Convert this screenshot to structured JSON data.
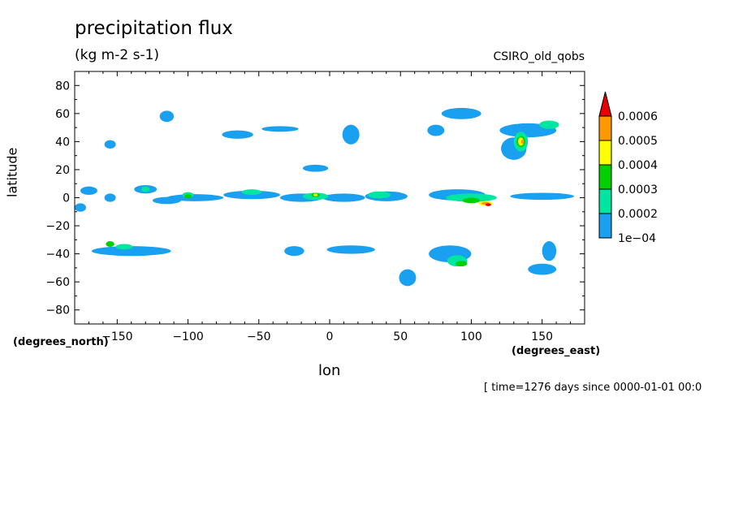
{
  "header": {
    "title": "precipitation flux",
    "units": "(kg m-2 s-1)",
    "source": "CSIRO_old_qobs"
  },
  "footer": {
    "time": "[ time=1276 days since 0000-01-01 00:0"
  },
  "chart_data": {
    "type": "heatmap",
    "title": "precipitation flux",
    "subtitle": "(kg m-2 s-1)",
    "xlabel": "lon",
    "ylabel": "latitude",
    "x_units": "(degrees_east)",
    "y_units": "(degrees_north)",
    "xlim": [
      -180,
      180
    ],
    "ylim": [
      -90,
      90
    ],
    "x_ticks": [
      -150,
      -100,
      -50,
      0,
      50,
      100,
      150
    ],
    "y_ticks": [
      80,
      60,
      40,
      20,
      0,
      -20,
      -40,
      -60,
      -80
    ],
    "colorbar": {
      "levels": [
        "1e-04",
        "0.0002",
        "0.0003",
        "0.0004",
        "0.0005",
        "0.0006"
      ],
      "colors": [
        "#1aa0f0",
        "#00e6a0",
        "#00d000",
        "#ffff00",
        "#ff9900",
        "#e60000"
      ]
    },
    "features": [
      {
        "lon": -170,
        "lat": 5,
        "w": 12,
        "h": 6,
        "level": 0
      },
      {
        "lon": -176,
        "lat": -7,
        "w": 8,
        "h": 6,
        "level": 0
      },
      {
        "lon": -155,
        "lat": 38,
        "w": 8,
        "h": 6,
        "level": 0
      },
      {
        "lon": -130,
        "lat": 6,
        "w": 16,
        "h": 6,
        "level": 0
      },
      {
        "lon": -155,
        "lat": 0,
        "w": 8,
        "h": 6,
        "level": 0
      },
      {
        "lon": -115,
        "lat": -2,
        "w": 20,
        "h": 5,
        "level": 0
      },
      {
        "lon": -95,
        "lat": 0,
        "w": 40,
        "h": 5,
        "level": 0
      },
      {
        "lon": -55,
        "lat": 2,
        "w": 40,
        "h": 6,
        "level": 0
      },
      {
        "lon": -20,
        "lat": 0,
        "w": 30,
        "h": 6,
        "level": 0
      },
      {
        "lon": 10,
        "lat": 0,
        "w": 30,
        "h": 6,
        "level": 0
      },
      {
        "lon": 40,
        "lat": 1,
        "w": 30,
        "h": 7,
        "level": 0
      },
      {
        "lon": 90,
        "lat": 2,
        "w": 40,
        "h": 8,
        "level": 0
      },
      {
        "lon": 150,
        "lat": 1,
        "w": 45,
        "h": 5,
        "level": 0
      },
      {
        "lon": -115,
        "lat": 58,
        "w": 10,
        "h": 8,
        "level": 0
      },
      {
        "lon": -65,
        "lat": 45,
        "w": 22,
        "h": 6,
        "level": 0
      },
      {
        "lon": -35,
        "lat": 49,
        "w": 26,
        "h": 4,
        "level": 0
      },
      {
        "lon": 15,
        "lat": 45,
        "w": 12,
        "h": 14,
        "level": 0
      },
      {
        "lon": 75,
        "lat": 48,
        "w": 12,
        "h": 8,
        "level": 0
      },
      {
        "lon": 93,
        "lat": 60,
        "w": 28,
        "h": 8,
        "level": 0
      },
      {
        "lon": 140,
        "lat": 48,
        "w": 40,
        "h": 10,
        "level": 0
      },
      {
        "lon": 130,
        "lat": 35,
        "w": 18,
        "h": 16,
        "level": 0
      },
      {
        "lon": -10,
        "lat": 21,
        "w": 18,
        "h": 5,
        "level": 0
      },
      {
        "lon": -140,
        "lat": -38,
        "w": 56,
        "h": 7,
        "level": 0
      },
      {
        "lon": -25,
        "lat": -38,
        "w": 14,
        "h": 7,
        "level": 0
      },
      {
        "lon": 15,
        "lat": -37,
        "w": 34,
        "h": 6,
        "level": 0
      },
      {
        "lon": 85,
        "lat": -40,
        "w": 30,
        "h": 12,
        "level": 0
      },
      {
        "lon": 55,
        "lat": -57,
        "w": 12,
        "h": 12,
        "level": 0
      },
      {
        "lon": 150,
        "lat": -51,
        "w": 20,
        "h": 8,
        "level": 0
      },
      {
        "lon": 155,
        "lat": -38,
        "w": 10,
        "h": 14,
        "level": 0
      },
      {
        "lon": -130,
        "lat": 6,
        "w": 6,
        "h": 4,
        "level": 1
      },
      {
        "lon": -100,
        "lat": 2,
        "w": 8,
        "h": 4,
        "level": 1
      },
      {
        "lon": -55,
        "lat": 4,
        "w": 14,
        "h": 4,
        "level": 1
      },
      {
        "lon": -10,
        "lat": 1,
        "w": 18,
        "h": 5,
        "level": 1
      },
      {
        "lon": 35,
        "lat": 2,
        "w": 16,
        "h": 5,
        "level": 1
      },
      {
        "lon": 100,
        "lat": 0,
        "w": 36,
        "h": 6,
        "level": 1
      },
      {
        "lon": 135,
        "lat": 40,
        "w": 10,
        "h": 14,
        "level": 1
      },
      {
        "lon": 155,
        "lat": 52,
        "w": 14,
        "h": 6,
        "level": 1
      },
      {
        "lon": -145,
        "lat": -35,
        "w": 12,
        "h": 4,
        "level": 1
      },
      {
        "lon": 90,
        "lat": -45,
        "w": 14,
        "h": 8,
        "level": 1
      },
      {
        "lon": -155,
        "lat": -33,
        "w": 6,
        "h": 4,
        "level": 2
      },
      {
        "lon": -100,
        "lat": 1,
        "w": 5,
        "h": 3,
        "level": 2
      },
      {
        "lon": -10,
        "lat": 2,
        "w": 6,
        "h": 3,
        "level": 2
      },
      {
        "lon": 100,
        "lat": -2,
        "w": 12,
        "h": 4,
        "level": 2
      },
      {
        "lon": 135,
        "lat": 40,
        "w": 6,
        "h": 8,
        "level": 2
      },
      {
        "lon": 93,
        "lat": -47,
        "w": 8,
        "h": 4,
        "level": 2
      },
      {
        "lon": -10,
        "lat": 2,
        "w": 3,
        "h": 2,
        "level": 3
      },
      {
        "lon": 110,
        "lat": -4,
        "w": 10,
        "h": 3,
        "level": 3
      },
      {
        "lon": 135,
        "lat": 40,
        "w": 4,
        "h": 6,
        "level": 3
      },
      {
        "lon": 110,
        "lat": -4,
        "w": 6,
        "h": 2,
        "level": 4
      },
      {
        "lon": 136,
        "lat": 40,
        "w": 2,
        "h": 3,
        "level": 4
      },
      {
        "lon": 112,
        "lat": -5,
        "w": 4,
        "h": 2,
        "level": 5
      }
    ]
  }
}
